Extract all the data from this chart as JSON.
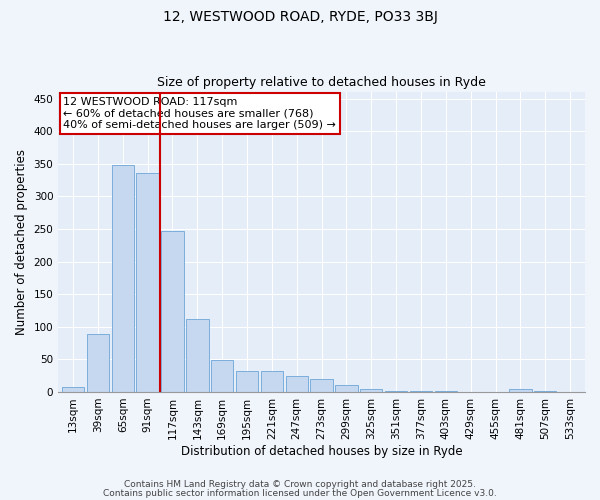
{
  "title_line1": "12, WESTWOOD ROAD, RYDE, PO33 3BJ",
  "title_line2": "Size of property relative to detached houses in Ryde",
  "xlabel": "Distribution of detached houses by size in Ryde",
  "ylabel": "Number of detached properties",
  "categories": [
    "13sqm",
    "39sqm",
    "65sqm",
    "91sqm",
    "117sqm",
    "143sqm",
    "169sqm",
    "195sqm",
    "221sqm",
    "247sqm",
    "273sqm",
    "299sqm",
    "325sqm",
    "351sqm",
    "377sqm",
    "403sqm",
    "429sqm",
    "455sqm",
    "481sqm",
    "507sqm",
    "533sqm"
  ],
  "values": [
    7,
    89,
    348,
    336,
    247,
    112,
    49,
    32,
    32,
    25,
    20,
    10,
    5,
    2,
    1,
    1,
    0,
    0,
    5,
    1,
    0
  ],
  "bar_color": "#c5d8f0",
  "bar_edge_color": "#7aaedb",
  "vline_color": "#cc0000",
  "annotation_title": "12 WESTWOOD ROAD: 117sqm",
  "annotation_line2": "← 60% of detached houses are smaller (768)",
  "annotation_line3": "40% of semi-detached houses are larger (509) →",
  "annotation_box_color": "#cc0000",
  "ylim": [
    0,
    460
  ],
  "yticks": [
    0,
    50,
    100,
    150,
    200,
    250,
    300,
    350,
    400,
    450
  ],
  "footer1": "Contains HM Land Registry data © Crown copyright and database right 2025.",
  "footer2": "Contains public sector information licensed under the Open Government Licence v3.0.",
  "bg_color": "#f0f4fb",
  "plot_bg_color": "#e4edf8",
  "grid_color": "#ffffff",
  "title_fontsize": 10,
  "subtitle_fontsize": 9,
  "xlabel_fontsize": 8.5,
  "ylabel_fontsize": 8.5,
  "tick_fontsize": 7.5,
  "footer_fontsize": 6.5,
  "ann_fontsize": 8
}
